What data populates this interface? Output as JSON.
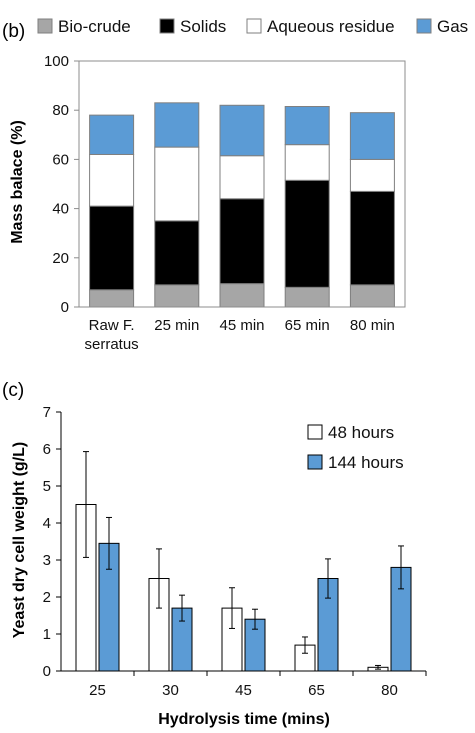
{
  "panels": {
    "b_label": "(b)",
    "c_label": "(c)"
  },
  "chart_data": [
    {
      "type": "bar",
      "stacked": true,
      "categories": [
        "Raw F. serratus",
        "25 min",
        "45 min",
        "65 min",
        "80 min"
      ],
      "category_lines": [
        [
          "Raw F.",
          "serratus"
        ],
        [
          "25 min"
        ],
        [
          "45 min"
        ],
        [
          "65 min"
        ],
        [
          "80 min"
        ]
      ],
      "series": [
        {
          "name": "Bio-crude",
          "color": "#a6a6a6",
          "values": [
            7,
            9,
            9.5,
            8,
            9
          ]
        },
        {
          "name": "Solids",
          "color": "#000000",
          "values": [
            34,
            26,
            34.5,
            43.5,
            38
          ]
        },
        {
          "name": "Aqueous residue",
          "color": "#ffffff",
          "values": [
            21,
            30,
            17.5,
            14.5,
            13
          ]
        },
        {
          "name": "Gas",
          "color": "#5b9bd5",
          "values": [
            16,
            18,
            20.5,
            15.5,
            19
          ]
        }
      ],
      "xlabel": "",
      "ylabel": "Mass balace (%)",
      "ylim": [
        0,
        100
      ],
      "yticks": [
        "0",
        "20",
        "40",
        "60",
        "80",
        "100"
      ],
      "legend": "top"
    },
    {
      "type": "bar",
      "categories": [
        "25",
        "30",
        "45",
        "65",
        "80"
      ],
      "series": [
        {
          "name": "48 hours",
          "color": "#ffffff",
          "values": [
            4.5,
            2.5,
            1.7,
            0.7,
            0.1
          ],
          "errors": [
            1.43,
            0.8,
            0.55,
            0.22,
            0.05
          ]
        },
        {
          "name": "144 hours",
          "color": "#5b9bd5",
          "values": [
            3.45,
            1.7,
            1.4,
            2.5,
            2.8
          ],
          "errors": [
            0.7,
            0.35,
            0.27,
            0.53,
            0.58
          ]
        }
      ],
      "xlabel": "Hydrolysis time (mins)",
      "ylabel": "Yeast dry cell weight (g/L)",
      "ylim": [
        0,
        7
      ],
      "yticks": [
        "0",
        "1",
        "2",
        "3",
        "4",
        "5",
        "6",
        "7"
      ],
      "legend": "top-right"
    }
  ]
}
